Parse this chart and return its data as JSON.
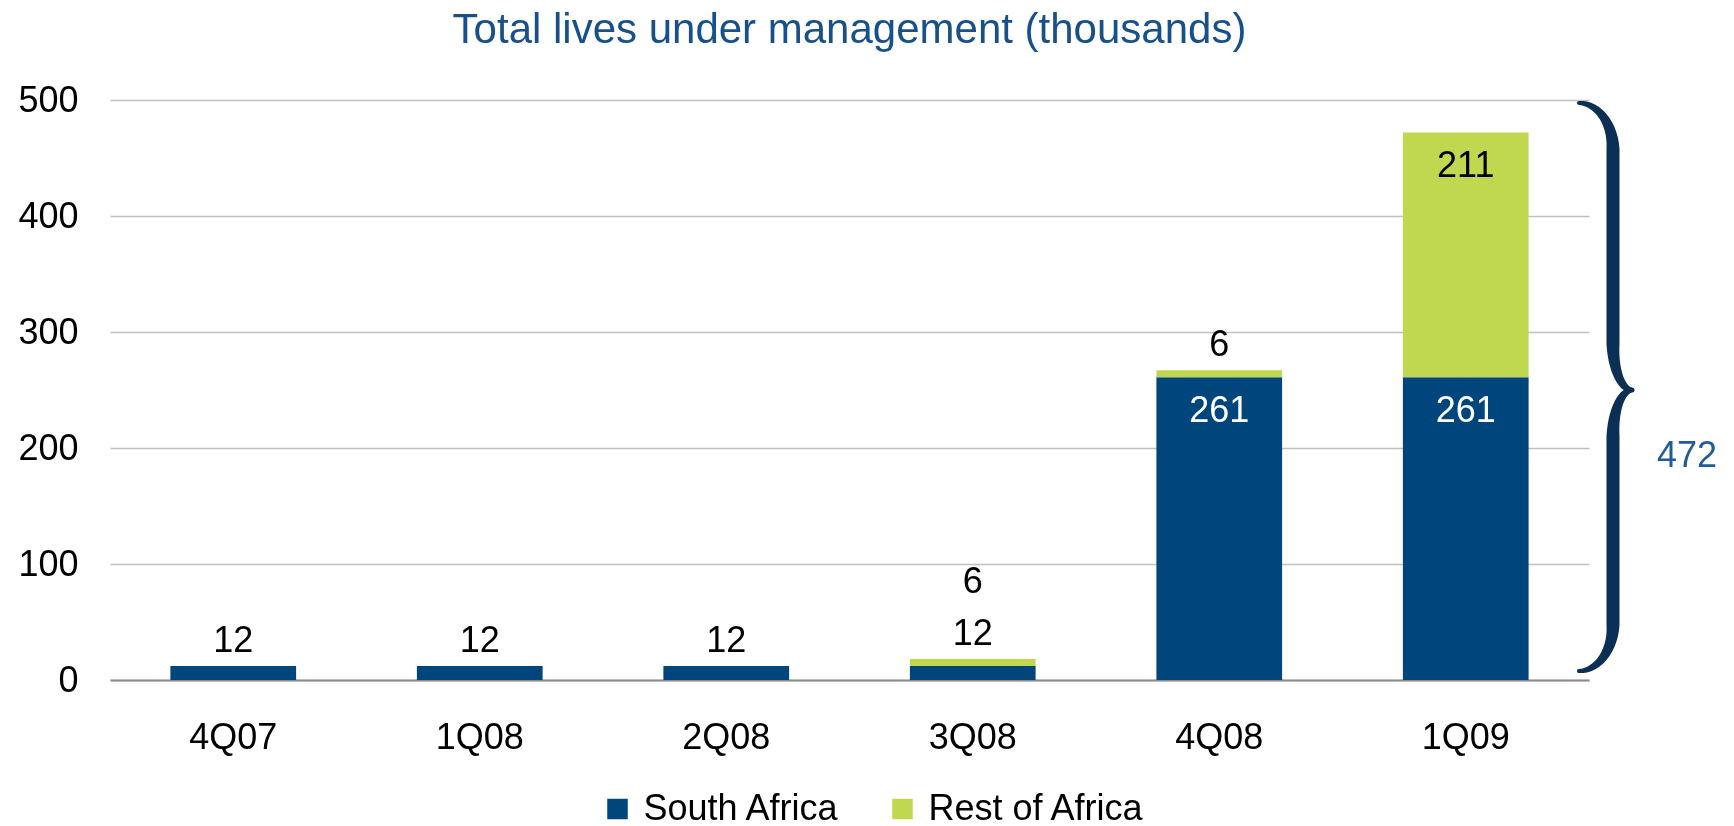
{
  "chart_data": {
    "type": "bar",
    "title": "Total lives under management (thousands)",
    "categories": [
      "4Q07",
      "1Q08",
      "2Q08",
      "3Q08",
      "4Q08",
      "1Q09"
    ],
    "series": [
      {
        "name": "South Africa",
        "color": "#00457c",
        "values": [
          12,
          12,
          12,
          12,
          261,
          261
        ]
      },
      {
        "name": "Rest of Africa",
        "color": "#c0d750",
        "values": [
          null,
          null,
          null,
          6,
          6,
          211
        ]
      }
    ],
    "stacked": true,
    "ylim": [
      0,
      500
    ],
    "yticks": [
      0,
      100,
      200,
      300,
      400,
      500
    ],
    "grid": "y",
    "legend": "bottom",
    "data_labels": true,
    "annotations": [
      "472"
    ]
  }
}
